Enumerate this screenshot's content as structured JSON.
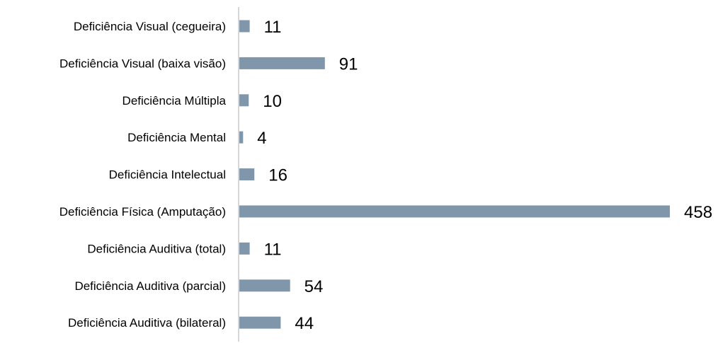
{
  "chart_data": {
    "type": "bar",
    "orientation": "horizontal",
    "categories": [
      "Deficiência Visual (cegueira)",
      "Deficiência Visual (baixa visão)",
      "Deficiência Múltipla",
      "Deficiência Mental",
      "Deficiência Intelectual",
      "Deficiência Física (Amputação)",
      "Deficiência Auditiva (total)",
      "Deficiência Auditiva (parcial)",
      "Deficiência Auditiva (bilateral)"
    ],
    "values": [
      11,
      91,
      10,
      4,
      16,
      458,
      11,
      54,
      44
    ],
    "title": "",
    "xlabel": "",
    "ylabel": "",
    "xlim": [
      0,
      458
    ],
    "grid": false,
    "legend": "none",
    "data_labels": true,
    "bar_color": "#7f96ab",
    "axis_color": "#c8c8c8"
  }
}
